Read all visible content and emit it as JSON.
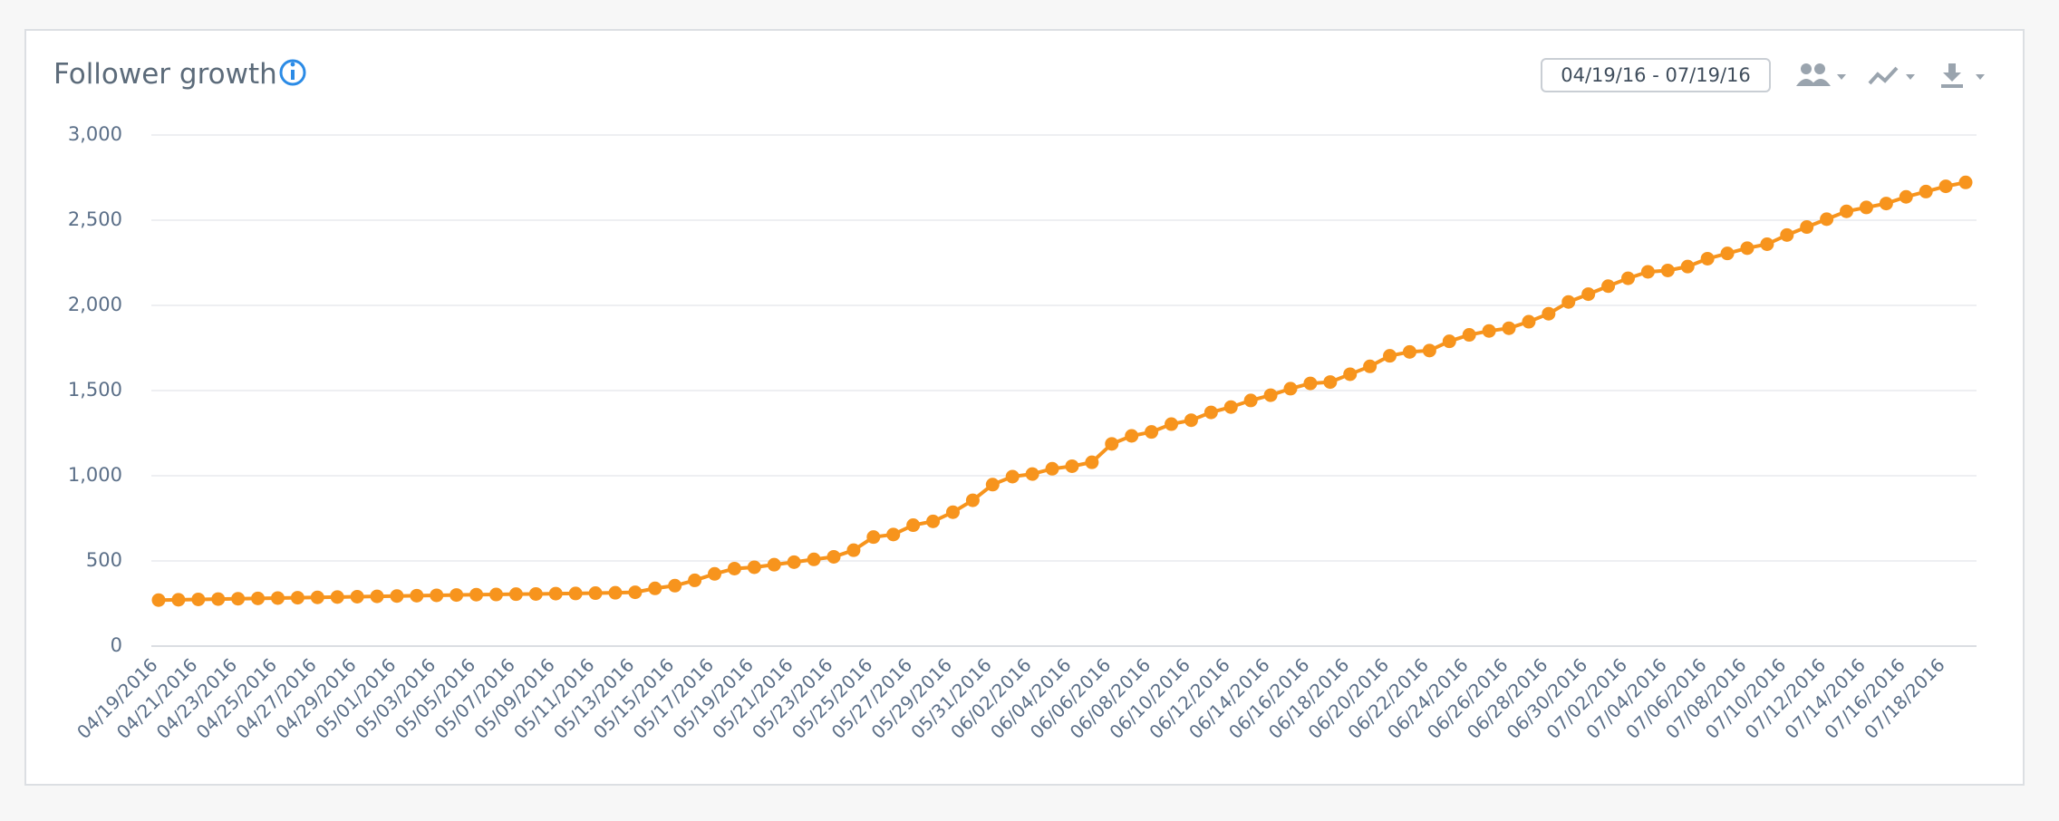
{
  "header": {
    "title": "Follower growth",
    "date_range": "04/19/16 - 07/19/16"
  },
  "chart_data": {
    "type": "line",
    "color": "#f7941d",
    "grid": true,
    "categories": [
      "04/19/2016",
      null,
      "04/21/2016",
      null,
      "04/23/2016",
      null,
      "04/25/2016",
      null,
      "04/27/2016",
      null,
      "04/29/2016",
      null,
      "05/01/2016",
      null,
      "05/03/2016",
      null,
      "05/05/2016",
      null,
      "05/07/2016",
      null,
      "05/09/2016",
      null,
      "05/11/2016",
      null,
      "05/13/2016",
      null,
      "05/15/2016",
      null,
      "05/17/2016",
      null,
      "05/19/2016",
      null,
      "05/21/2016",
      null,
      "05/23/2016",
      null,
      "05/25/2016",
      null,
      "05/27/2016",
      null,
      "05/29/2016",
      null,
      "05/31/2016",
      null,
      "06/02/2016",
      null,
      "06/04/2016",
      null,
      "06/06/2016",
      null,
      "06/08/2016",
      null,
      "06/10/2016",
      null,
      "06/12/2016",
      null,
      "06/14/2016",
      null,
      "06/16/2016",
      null,
      "06/18/2016",
      null,
      "06/20/2016",
      null,
      "06/22/2016",
      null,
      "06/24/2016",
      null,
      "06/26/2016",
      null,
      "06/28/2016",
      null,
      "06/30/2016",
      null,
      "07/02/2016",
      null,
      "07/04/2016",
      null,
      "07/06/2016",
      null,
      "07/08/2016",
      null,
      "07/10/2016",
      null,
      "07/12/2016",
      null,
      "07/14/2016",
      null,
      "07/16/2016",
      null,
      "07/18/2016",
      null
    ],
    "values": [
      270,
      272,
      274,
      276,
      278,
      280,
      282,
      284,
      286,
      288,
      290,
      292,
      294,
      296,
      298,
      300,
      302,
      303,
      305,
      306,
      308,
      309,
      311,
      313,
      316,
      339,
      355,
      386,
      424,
      455,
      463,
      478,
      493,
      509,
      524,
      563,
      640,
      655,
      710,
      732,
      786,
      856,
      948,
      995,
      1010,
      1041,
      1056,
      1079,
      1187,
      1234,
      1257,
      1303,
      1326,
      1372,
      1403,
      1442,
      1473,
      1511,
      1542,
      1550,
      1596,
      1642,
      1704,
      1727,
      1735,
      1789,
      1827,
      1850,
      1866,
      1904,
      1951,
      2020,
      2066,
      2113,
      2159,
      2197,
      2205,
      2228,
      2274,
      2305,
      2336,
      2359,
      2413,
      2460,
      2506,
      2552,
      2575,
      2598,
      2637,
      2668,
      2699,
      2722
    ],
    "ylim": [
      0,
      3000
    ],
    "yticks": [
      0,
      500,
      {
        "value": 1000,
        "label": "1,000"
      },
      {
        "value": 1500,
        "label": "1,500"
      },
      {
        "value": 2000,
        "label": "2,000"
      },
      {
        "value": 2500,
        "label": "2,500"
      },
      {
        "value": 3000,
        "label": "3,000"
      }
    ]
  }
}
